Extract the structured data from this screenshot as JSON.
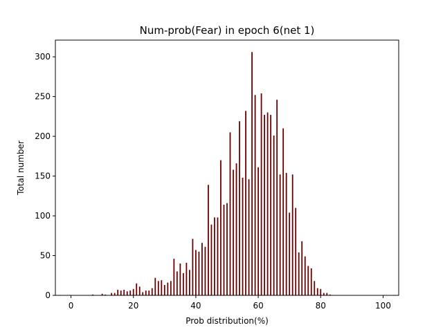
{
  "chart_data": {
    "type": "bar",
    "title": "Num-prob(Fear) in epoch 6(net 1)",
    "xlabel": "Prob distribution(%)",
    "ylabel": "Total number",
    "xlim": [
      -5,
      105
    ],
    "ylim": [
      0,
      321
    ],
    "xticks": [
      "0",
      "20",
      "40",
      "60",
      "80",
      "100"
    ],
    "yticks": [
      "0",
      "50",
      "100",
      "150",
      "200",
      "250",
      "300"
    ],
    "grid": false,
    "bar_color": "#6b0000",
    "x": [
      7,
      10,
      11,
      13,
      14,
      15,
      16,
      17,
      18,
      19,
      20,
      21,
      22,
      23,
      24,
      25,
      26,
      27,
      28,
      29,
      30,
      31,
      32,
      33,
      34,
      35,
      36,
      37,
      38,
      39,
      40,
      41,
      42,
      43,
      44,
      45,
      46,
      47,
      48,
      49,
      50,
      51,
      52,
      53,
      54,
      55,
      56,
      57,
      58,
      59,
      60,
      61,
      62,
      63,
      64,
      65,
      66,
      67,
      68,
      69,
      70,
      71,
      72,
      73,
      74,
      75,
      76,
      77,
      78,
      79,
      80,
      81,
      82,
      83
    ],
    "values": [
      1,
      2,
      1,
      3,
      3,
      7,
      6,
      7,
      5,
      6,
      8,
      15,
      11,
      4,
      6,
      6,
      9,
      22,
      18,
      19,
      13,
      16,
      18,
      46,
      30,
      40,
      28,
      41,
      32,
      71,
      57,
      55,
      66,
      61,
      139,
      89,
      98,
      98,
      170,
      114,
      116,
      205,
      158,
      166,
      219,
      148,
      232,
      146,
      306,
      252,
      161,
      254,
      227,
      230,
      227,
      201,
      246,
      152,
      210,
      154,
      104,
      152,
      110,
      54,
      68,
      49,
      37,
      34,
      18,
      9,
      8,
      3,
      3,
      1
    ]
  }
}
